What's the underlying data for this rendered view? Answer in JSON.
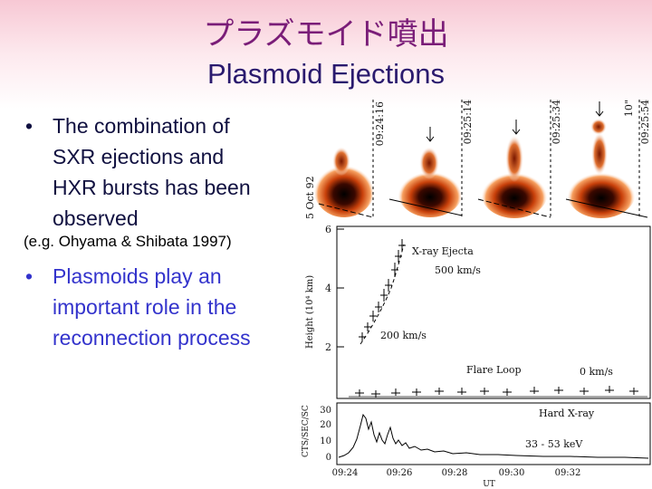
{
  "title": "プラズモイド噴出",
  "subtitle": "Plasmoid Ejections",
  "bullets": [
    {
      "lines": [
        "The combination of",
        "SXR ejections and",
        "HXR bursts has been",
        "observed"
      ]
    },
    {
      "lines": [
        "Plasmoids play an",
        "important role in the",
        "reconnection process"
      ]
    }
  ],
  "note": "(e.g. Ohyama & Shibata 1997)",
  "figure": {
    "frame_times": [
      "09:24:16",
      "09:25:14",
      "09:25:34",
      "09:25:54"
    ],
    "scale_label": "10\"",
    "date_label": "5 Oct 92",
    "upper_plot": {
      "y_label": "Height (10⁴ km)",
      "yticks": [
        "6",
        "4",
        "2"
      ],
      "annotations": [
        "X-ray Ejecta",
        "500 km/s",
        "200 km/s",
        "Flare Loop",
        "0 km/s"
      ]
    },
    "lower_plot": {
      "y_label": "CTS/SEC/SC",
      "yticks": [
        "30",
        "20",
        "10",
        "0"
      ],
      "annotations": [
        "Hard X-ray",
        "33 - 53 keV"
      ]
    },
    "xticks": [
      "09:24",
      "09:26",
      "09:28",
      "09:30",
      "09:32"
    ],
    "x_label": "UT"
  }
}
